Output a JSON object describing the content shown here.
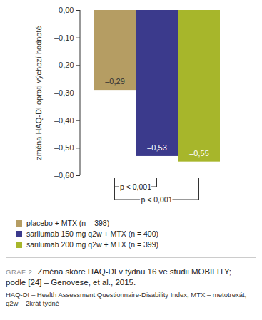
{
  "chart_data": {
    "type": "bar",
    "ylabel": "změna HAQ-DI oproti výchozí hodnotě",
    "categories": [
      "placebo + MTX (n = 398)",
      "sarilumab 150 mg q2w + MTX (n = 400)",
      "sarilumab 200 mg q2w + MTX (n = 399)"
    ],
    "values": [
      -0.29,
      -0.53,
      -0.55
    ],
    "value_labels": [
      "–0,29",
      "–0,53",
      "–0,55"
    ],
    "colors": [
      "#b59d63",
      "#3b3a8c",
      "#a7b62b"
    ],
    "ylim": [
      -0.6,
      0
    ],
    "yticks": [
      {
        "value": 0,
        "label": "0,00"
      },
      {
        "value": -0.1,
        "label": "–0,10"
      },
      {
        "value": -0.2,
        "label": "–0,20"
      },
      {
        "value": -0.3,
        "label": "–0,30"
      },
      {
        "value": -0.4,
        "label": "–0,40"
      },
      {
        "value": -0.5,
        "label": "–0,50"
      },
      {
        "value": -0.6,
        "label": "–0,60"
      }
    ],
    "grid": false,
    "data_labels": true,
    "tick_labels": "y",
    "legend": "bottom",
    "annotations": [
      {
        "text": "p < 0,001",
        "between": [
          "placebo + MTX (n = 398)",
          "sarilumab 150 mg q2w + MTX (n = 400)"
        ]
      },
      {
        "text": "p < 0,001",
        "between": [
          "placebo + MTX (n = 398)",
          "sarilumab 200 mg q2w + MTX (n = 399)"
        ]
      }
    ],
    "caption_label": "GRAF 2",
    "title": "Změna skóre HAQ-DI v týdnu 16 ve studii MOBILITY; podle [24] – Genovese, et al., 2015.",
    "footnote": "HAQ-DI – Health Assessment Questionnaire-Disability Index; MTX – metotrexát; q2w – 2krát týdně"
  }
}
